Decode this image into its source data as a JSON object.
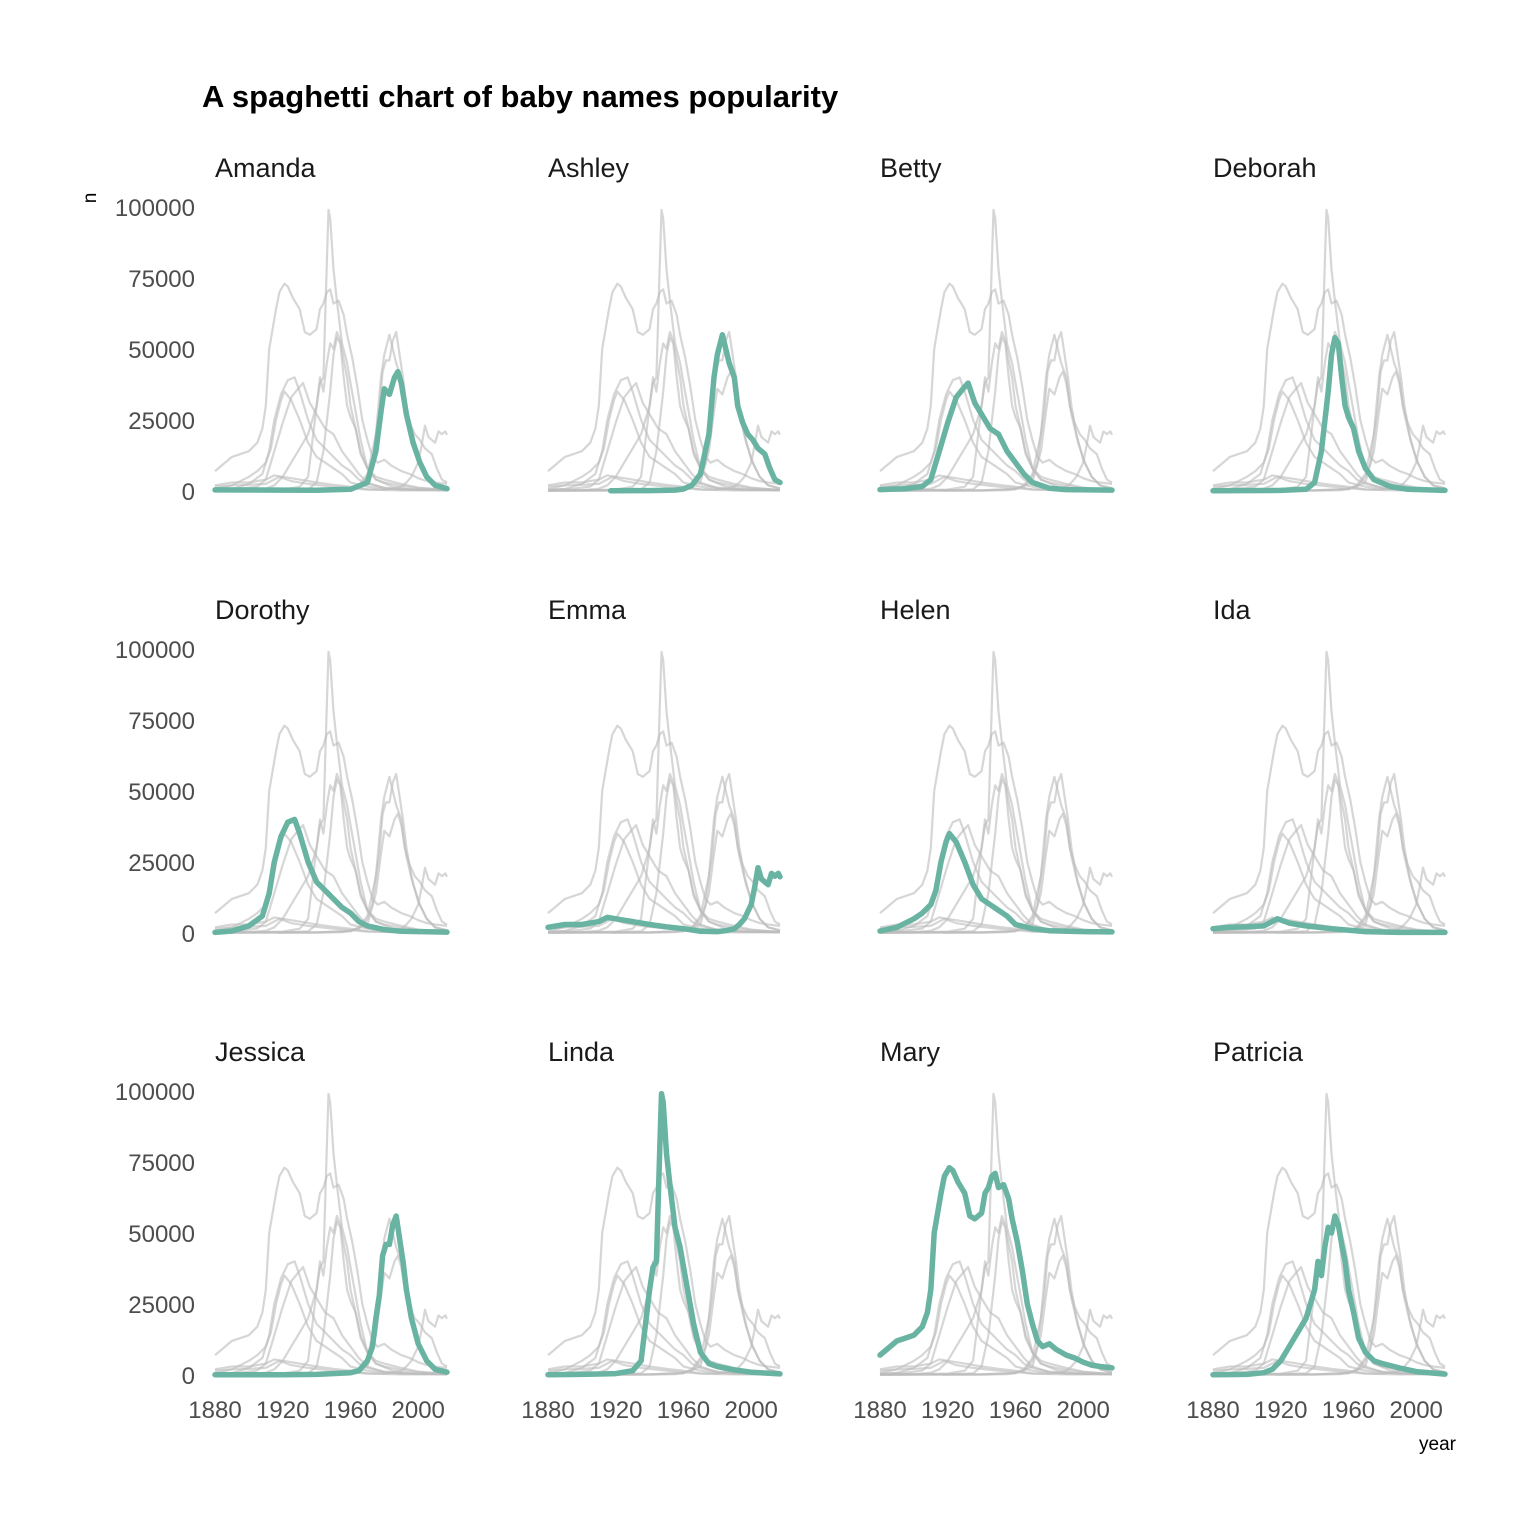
{
  "chart_data": {
    "type": "line",
    "title": "A spaghetti chart of baby names popularity",
    "xlabel": "year",
    "ylabel": "n",
    "xlim": [
      1880,
      2017
    ],
    "ylim": [
      0,
      100000
    ],
    "x_ticks": [
      1880,
      1920,
      1960,
      2000
    ],
    "y_ticks": [
      0,
      25000,
      50000,
      75000,
      100000
    ],
    "grid": false,
    "highlight_color": "#69b3a2",
    "background_line_color": "#bdbdbd",
    "layout": "facet grid 3 rows x 4 columns",
    "series": [
      {
        "name": "Amanda",
        "points": [
          [
            1880,
            400
          ],
          [
            1900,
            350
          ],
          [
            1920,
            300
          ],
          [
            1940,
            250
          ],
          [
            1960,
            600
          ],
          [
            1970,
            3000
          ],
          [
            1975,
            14000
          ],
          [
            1978,
            28000
          ],
          [
            1980,
            36000
          ],
          [
            1983,
            34000
          ],
          [
            1986,
            40000
          ],
          [
            1988,
            42000
          ],
          [
            1990,
            38000
          ],
          [
            1993,
            27000
          ],
          [
            1997,
            17000
          ],
          [
            2001,
            10000
          ],
          [
            2005,
            5000
          ],
          [
            2010,
            2000
          ],
          [
            2017,
            800
          ]
        ]
      },
      {
        "name": "Ashley",
        "points": [
          [
            1917,
            100
          ],
          [
            1940,
            150
          ],
          [
            1955,
            300
          ],
          [
            1960,
            700
          ],
          [
            1965,
            2000
          ],
          [
            1970,
            6000
          ],
          [
            1975,
            20000
          ],
          [
            1978,
            40000
          ],
          [
            1980,
            48000
          ],
          [
            1983,
            55000
          ],
          [
            1985,
            50000
          ],
          [
            1987,
            45000
          ],
          [
            1990,
            40000
          ],
          [
            1992,
            30000
          ],
          [
            1995,
            24000
          ],
          [
            1998,
            20000
          ],
          [
            2001,
            18000
          ],
          [
            2004,
            15000
          ],
          [
            2008,
            13000
          ],
          [
            2011,
            8000
          ],
          [
            2014,
            4000
          ],
          [
            2017,
            3000
          ]
        ]
      },
      {
        "name": "Betty",
        "points": [
          [
            1880,
            500
          ],
          [
            1895,
            800
          ],
          [
            1905,
            1600
          ],
          [
            1910,
            4000
          ],
          [
            1915,
            14000
          ],
          [
            1920,
            24000
          ],
          [
            1925,
            33000
          ],
          [
            1929,
            36000
          ],
          [
            1932,
            38000
          ],
          [
            1936,
            31000
          ],
          [
            1940,
            27000
          ],
          [
            1945,
            22000
          ],
          [
            1950,
            20000
          ],
          [
            1955,
            14000
          ],
          [
            1960,
            10000
          ],
          [
            1965,
            6000
          ],
          [
            1970,
            3000
          ],
          [
            1980,
            1000
          ],
          [
            1990,
            500
          ],
          [
            2017,
            300
          ]
        ]
      },
      {
        "name": "Deborah",
        "points": [
          [
            1880,
            100
          ],
          [
            1920,
            200
          ],
          [
            1935,
            600
          ],
          [
            1940,
            3000
          ],
          [
            1944,
            14000
          ],
          [
            1948,
            35000
          ],
          [
            1950,
            48000
          ],
          [
            1952,
            54000
          ],
          [
            1954,
            52000
          ],
          [
            1956,
            40000
          ],
          [
            1958,
            30000
          ],
          [
            1960,
            26000
          ],
          [
            1963,
            22000
          ],
          [
            1966,
            14000
          ],
          [
            1970,
            8000
          ],
          [
            1975,
            4000
          ],
          [
            1985,
            1500
          ],
          [
            1995,
            600
          ],
          [
            2017,
            200
          ]
        ]
      },
      {
        "name": "Dorothy",
        "points": [
          [
            1880,
            200
          ],
          [
            1890,
            700
          ],
          [
            1900,
            2500
          ],
          [
            1908,
            6000
          ],
          [
            1912,
            14000
          ],
          [
            1915,
            25000
          ],
          [
            1919,
            34000
          ],
          [
            1923,
            39000
          ],
          [
            1927,
            40000
          ],
          [
            1930,
            35000
          ],
          [
            1935,
            25000
          ],
          [
            1940,
            18000
          ],
          [
            1945,
            15000
          ],
          [
            1950,
            12000
          ],
          [
            1955,
            9000
          ],
          [
            1960,
            7000
          ],
          [
            1965,
            4000
          ],
          [
            1970,
            2500
          ],
          [
            1980,
            1200
          ],
          [
            1990,
            600
          ],
          [
            2017,
            300
          ]
        ]
      },
      {
        "name": "Emma",
        "points": [
          [
            1880,
            2000
          ],
          [
            1890,
            3000
          ],
          [
            1900,
            3000
          ],
          [
            1910,
            4000
          ],
          [
            1915,
            5500
          ],
          [
            1920,
            5000
          ],
          [
            1930,
            4000
          ],
          [
            1940,
            3000
          ],
          [
            1950,
            2200
          ],
          [
            1960,
            1500
          ],
          [
            1970,
            600
          ],
          [
            1980,
            500
          ],
          [
            1985,
            800
          ],
          [
            1990,
            1500
          ],
          [
            1993,
            3000
          ],
          [
            1996,
            5000
          ],
          [
            2000,
            10000
          ],
          [
            2002,
            16000
          ],
          [
            2004,
            23000
          ],
          [
            2006,
            19000
          ],
          [
            2008,
            18000
          ],
          [
            2010,
            17000
          ],
          [
            2012,
            21000
          ],
          [
            2014,
            20000
          ],
          [
            2016,
            21000
          ],
          [
            2017,
            19800
          ]
        ]
      },
      {
        "name": "Helen",
        "points": [
          [
            1880,
            700
          ],
          [
            1890,
            2000
          ],
          [
            1900,
            5000
          ],
          [
            1905,
            7000
          ],
          [
            1910,
            10000
          ],
          [
            1913,
            15000
          ],
          [
            1916,
            25000
          ],
          [
            1919,
            32000
          ],
          [
            1921,
            35000
          ],
          [
            1925,
            32000
          ],
          [
            1930,
            25000
          ],
          [
            1935,
            17000
          ],
          [
            1940,
            12000
          ],
          [
            1945,
            10000
          ],
          [
            1950,
            8000
          ],
          [
            1955,
            6000
          ],
          [
            1960,
            3000
          ],
          [
            1970,
            1500
          ],
          [
            1980,
            800
          ],
          [
            2000,
            500
          ],
          [
            2017,
            400
          ]
        ]
      },
      {
        "name": "Ida",
        "points": [
          [
            1880,
            1500
          ],
          [
            1890,
            2000
          ],
          [
            1900,
            2200
          ],
          [
            1910,
            2500
          ],
          [
            1918,
            5000
          ],
          [
            1925,
            3500
          ],
          [
            1935,
            2500
          ],
          [
            1950,
            1500
          ],
          [
            1970,
            500
          ],
          [
            1990,
            200
          ],
          [
            2017,
            200
          ]
        ]
      },
      {
        "name": "Jessica",
        "points": [
          [
            1880,
            100
          ],
          [
            1920,
            100
          ],
          [
            1940,
            200
          ],
          [
            1960,
            800
          ],
          [
            1965,
            1500
          ],
          [
            1970,
            5000
          ],
          [
            1973,
            10000
          ],
          [
            1975,
            20000
          ],
          [
            1977,
            28000
          ],
          [
            1979,
            42000
          ],
          [
            1981,
            46000
          ],
          [
            1983,
            46000
          ],
          [
            1985,
            53000
          ],
          [
            1987,
            56000
          ],
          [
            1989,
            48000
          ],
          [
            1991,
            40000
          ],
          [
            1993,
            30000
          ],
          [
            1996,
            20000
          ],
          [
            2000,
            11000
          ],
          [
            2005,
            5000
          ],
          [
            2010,
            2000
          ],
          [
            2017,
            1000
          ]
        ]
      },
      {
        "name": "Linda",
        "points": [
          [
            1880,
            100
          ],
          [
            1900,
            200
          ],
          [
            1920,
            500
          ],
          [
            1930,
            1500
          ],
          [
            1935,
            5000
          ],
          [
            1937,
            15000
          ],
          [
            1940,
            30000
          ],
          [
            1942,
            38000
          ],
          [
            1944,
            40000
          ],
          [
            1945,
            60000
          ],
          [
            1946,
            80000
          ],
          [
            1947,
            99000
          ],
          [
            1948,
            96000
          ],
          [
            1950,
            78000
          ],
          [
            1952,
            67000
          ],
          [
            1955,
            52000
          ],
          [
            1958,
            45000
          ],
          [
            1960,
            38000
          ],
          [
            1963,
            28000
          ],
          [
            1966,
            18000
          ],
          [
            1970,
            8000
          ],
          [
            1975,
            4000
          ],
          [
            1980,
            3000
          ],
          [
            1990,
            1800
          ],
          [
            2000,
            1000
          ],
          [
            2017,
            400
          ]
        ]
      },
      {
        "name": "Mary",
        "points": [
          [
            1880,
            7000
          ],
          [
            1885,
            9500
          ],
          [
            1890,
            12000
          ],
          [
            1895,
            13000
          ],
          [
            1900,
            14000
          ],
          [
            1905,
            17000
          ],
          [
            1908,
            22000
          ],
          [
            1910,
            30000
          ],
          [
            1912,
            50000
          ],
          [
            1914,
            57000
          ],
          [
            1916,
            64000
          ],
          [
            1918,
            70000
          ],
          [
            1921,
            73000
          ],
          [
            1923,
            72000
          ],
          [
            1926,
            68000
          ],
          [
            1930,
            64000
          ],
          [
            1933,
            56000
          ],
          [
            1936,
            55000
          ],
          [
            1940,
            57000
          ],
          [
            1942,
            64000
          ],
          [
            1944,
            66000
          ],
          [
            1946,
            70000
          ],
          [
            1948,
            71000
          ],
          [
            1950,
            66000
          ],
          [
            1953,
            67000
          ],
          [
            1956,
            62000
          ],
          [
            1958,
            55000
          ],
          [
            1961,
            47000
          ],
          [
            1964,
            37000
          ],
          [
            1967,
            25000
          ],
          [
            1970,
            18000
          ],
          [
            1973,
            12000
          ],
          [
            1976,
            10000
          ],
          [
            1980,
            11000
          ],
          [
            1984,
            9000
          ],
          [
            1990,
            7000
          ],
          [
            1995,
            6000
          ],
          [
            2000,
            4500
          ],
          [
            2005,
            3500
          ],
          [
            2010,
            3000
          ],
          [
            2017,
            2500
          ]
        ]
      },
      {
        "name": "Patricia",
        "points": [
          [
            1880,
            100
          ],
          [
            1900,
            200
          ],
          [
            1910,
            800
          ],
          [
            1915,
            2000
          ],
          [
            1920,
            5000
          ],
          [
            1925,
            10000
          ],
          [
            1930,
            15000
          ],
          [
            1935,
            20000
          ],
          [
            1940,
            30000
          ],
          [
            1942,
            40000
          ],
          [
            1944,
            35000
          ],
          [
            1946,
            45000
          ],
          [
            1948,
            52000
          ],
          [
            1950,
            50000
          ],
          [
            1952,
            56000
          ],
          [
            1954,
            53000
          ],
          [
            1956,
            46000
          ],
          [
            1958,
            40000
          ],
          [
            1960,
            30000
          ],
          [
            1963,
            22000
          ],
          [
            1966,
            13000
          ],
          [
            1970,
            8000
          ],
          [
            1975,
            5000
          ],
          [
            1980,
            4000
          ],
          [
            1990,
            2500
          ],
          [
            2000,
            1200
          ],
          [
            2017,
            300
          ]
        ]
      }
    ]
  }
}
